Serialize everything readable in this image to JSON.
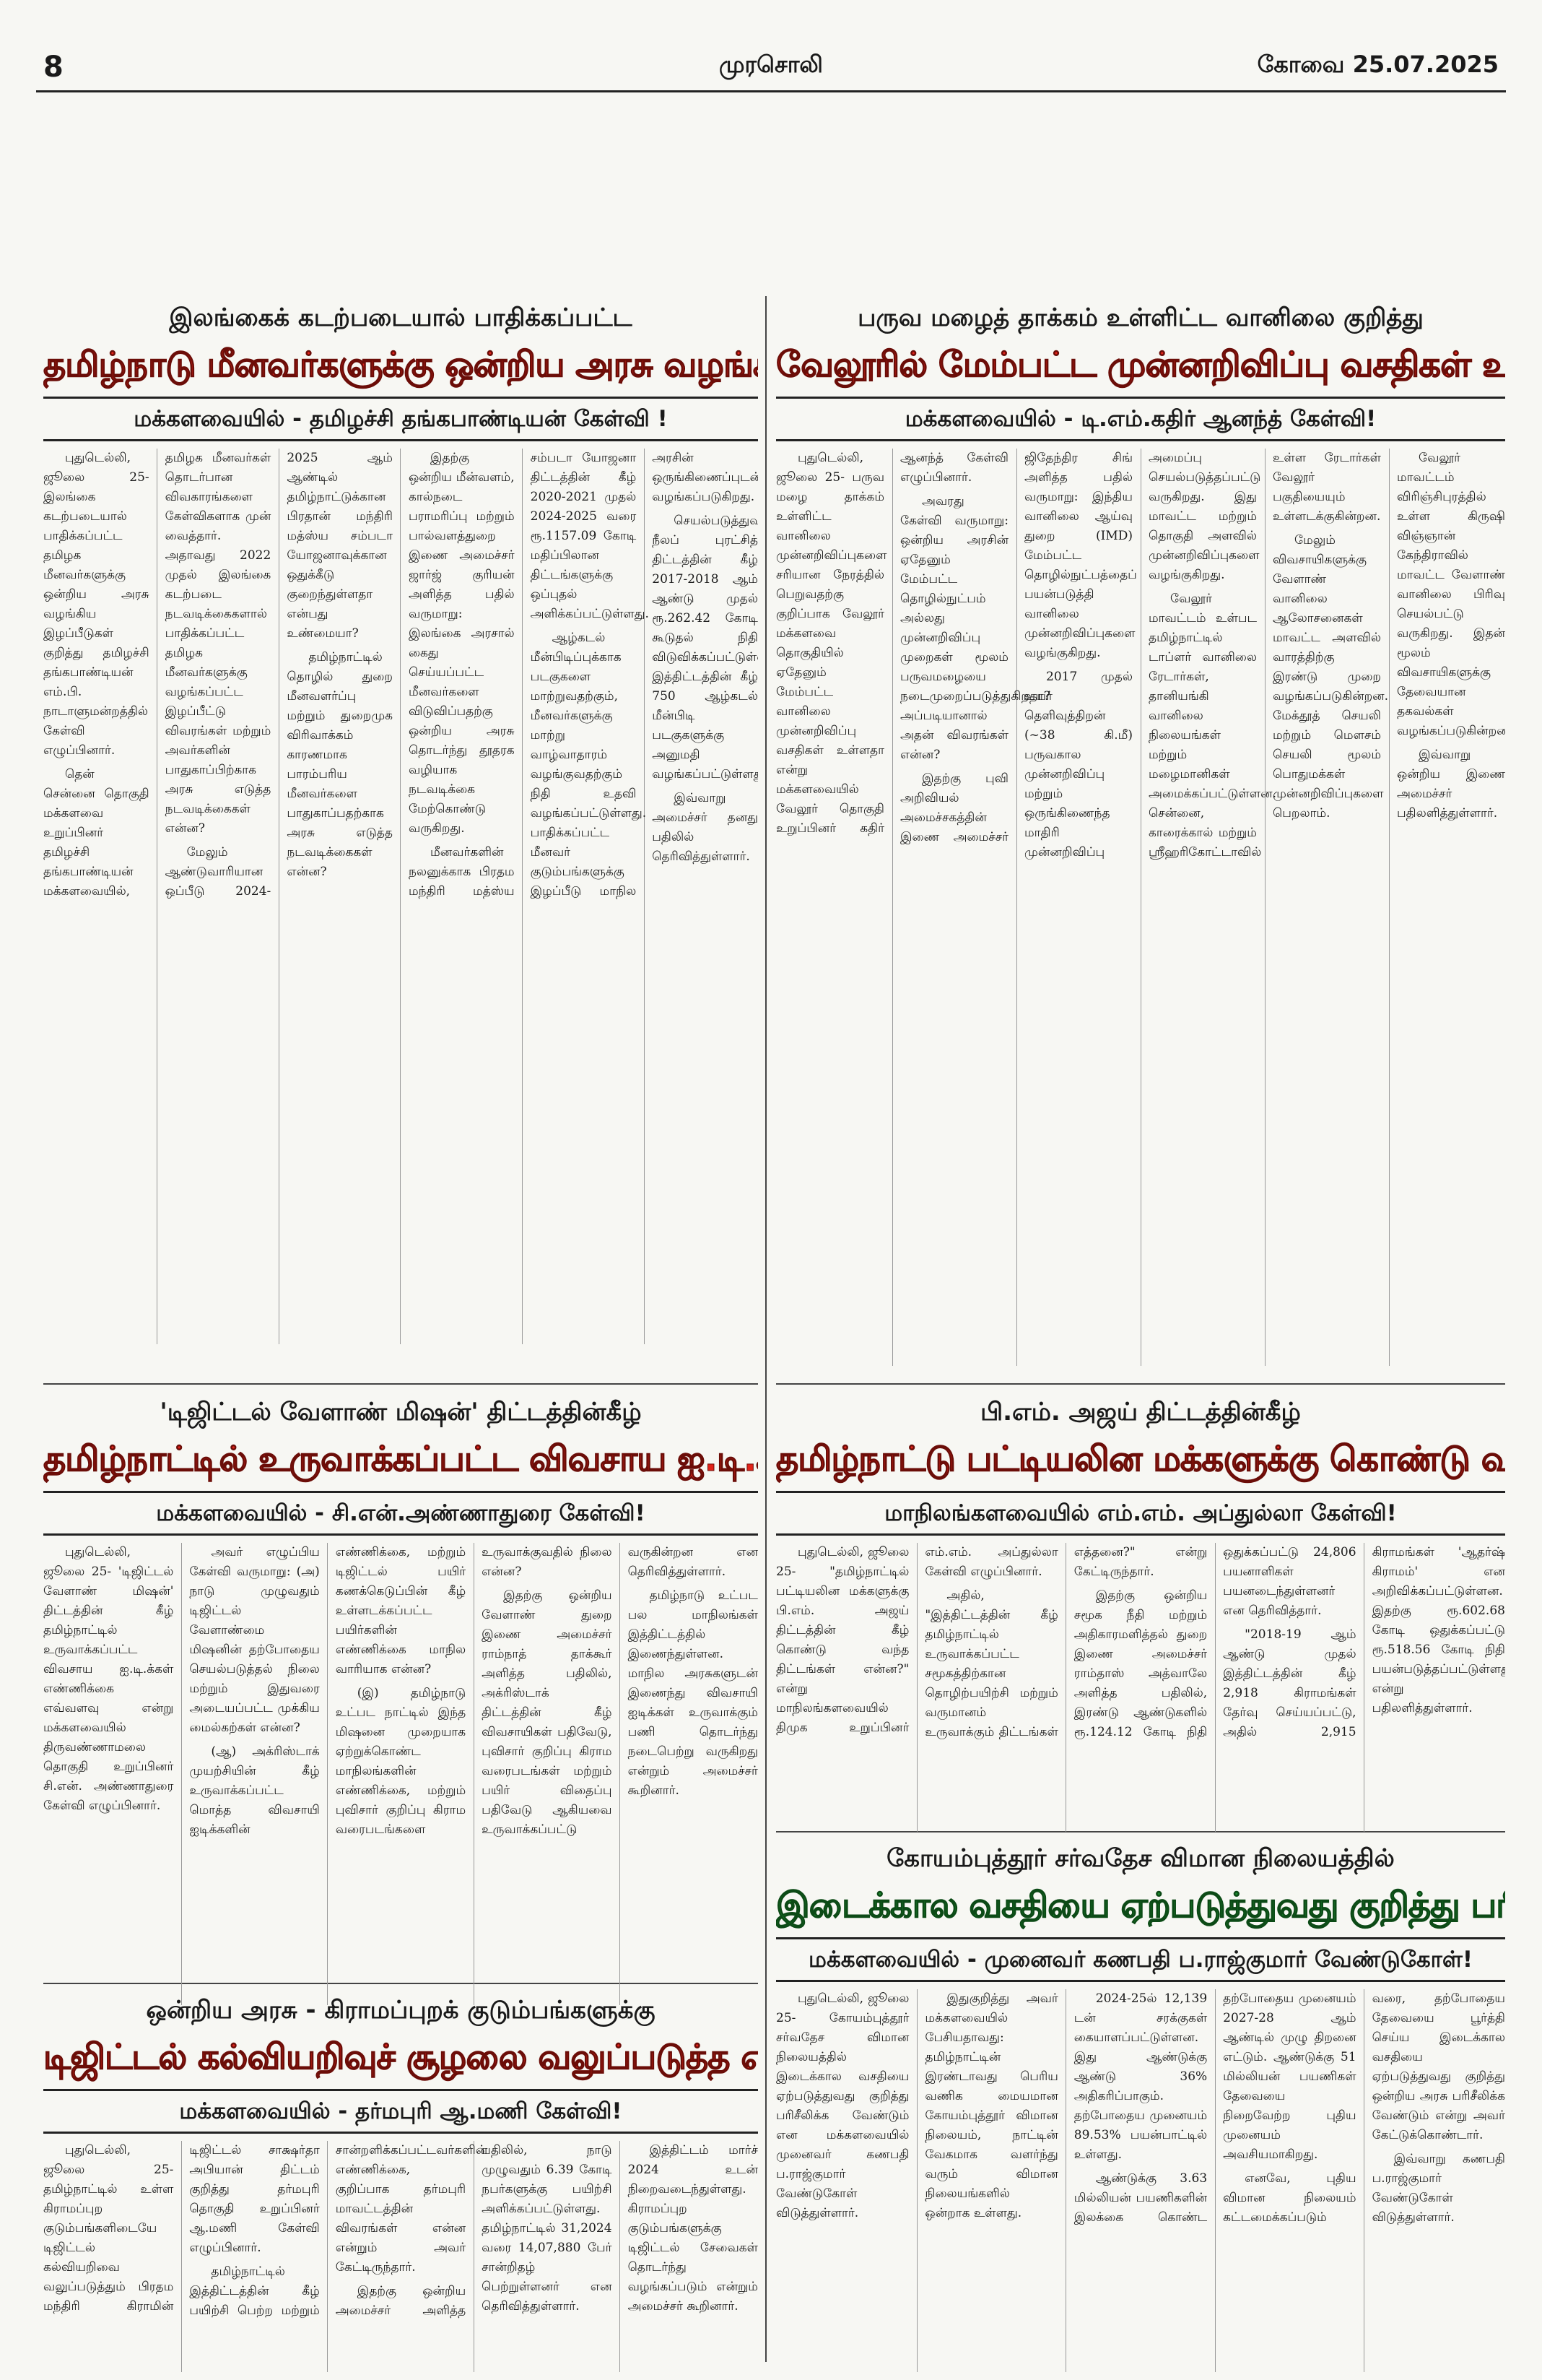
{
  "header": {
    "page": "8",
    "paper": "முரசொலி",
    "edition_date": "கோவை 25.07.2025"
  },
  "articles": [
    {
      "kicker": "இலங்கைக் கடற்படையால் பாதிக்கப்பட்ட",
      "headline": "தமிழ்நாடு மீனவர்களுக்கு ஒன்றிய அரசு வழங்கிய இழப்பீடுகள் என்ன?",
      "byline": "மக்களவையில் - தமிழச்சி தங்கபாண்டியன் கேள்வி !",
      "paragraphs": [
        "புதுடெல்லி, ஜூலை 25- இலங்கை கடற்படையால் பாதிக்கப்பட்ட தமிழக மீனவர்களுக்கு ஒன்றிய அரசு வழங்கிய இழப்பீடுகள் குறித்து தமிழச்சி தங்கபாண்டியன் எம்.பி. நாடாளுமன்றத்தில் கேள்வி எழுப்பினார்.",
        "தென் சென்னை தொகுதி மக்களவை உறுப்பினர் தமிழச்சி தங்கபாண்டியன் மக்களவையில், தமிழக மீனவர்கள் தொடர்பான விவகாரங்களை கேள்விகளாக முன் வைத்தார். அதாவது 2022 முதல் இலங்கை கடற்படை நடவடிக்கைகளால் பாதிக்கப்பட்ட தமிழக மீனவர்களுக்கு வழங்கப்பட்ட இழப்பீட்டு விவரங்கள் மற்றும் அவர்களின் பாதுகாப்பிற்காக அரசு எடுத்த நடவடிக்கைகள் என்ன?",
        "மேலும் ஆண்டுவாரியான ஒப்பீடு 2024-2025 ஆம் ஆண்டில் தமிழ்நாட்டுக்கான பிரதான் மந்திரி மத்ஸ்ய சம்படா யோஜனாவுக்கான ஒதுக்கீடு குறைந்துள்ளதா என்பது உண்மையா?",
        "தமிழ்நாட்டில் தொழில் துறை மீனவளர்ப்பு மற்றும் துறைமுக விரிவாக்கம் காரணமாக பாரம்பரிய மீனவர்களை பாதுகாப்பதற்காக அரசு எடுத்த நடவடிக்கைகள் என்ன?",
        "இதற்கு ஒன்றிய மீன்வளம், கால்நடை பராமரிப்பு மற்றும் பால்வளத்துறை இணை அமைச்சர் ஜார்ஜ் குரியன் அளித்த பதில் வருமாறு: இலங்கை அரசால் கைது செய்யப்பட்ட மீனவர்களை விடுவிப்பதற்கு ஒன்றிய அரசு தொடர்ந்து தூதரக வழியாக நடவடிக்கை மேற்கொண்டு வருகிறது.",
        "மீனவர்களின் நலனுக்காக பிரதம மந்திரி மத்ஸ்ய சம்படா யோஜனா திட்டத்தின் கீழ் 2020-2021 முதல் 2024-2025 வரை ரூ.1157.09 கோடி மதிப்பிலான திட்டங்களுக்கு ஒப்புதல் அளிக்கப்பட்டுள்ளது.",
        "ஆழ்கடல் மீன்பிடிப்புக்காக படகுகளை மாற்றுவதற்கும், மீனவர்களுக்கு மாற்று வாழ்வாதாரம் வழங்குவதற்கும் நிதி உதவி வழங்கப்பட்டுள்ளது. பாதிக்கப்பட்ட மீனவர் குடும்பங்களுக்கு இழப்பீடு மாநில அரசின் ஒருங்கிணைப்புடன் வழங்கப்படுகிறது.",
        "செயல்படுத்துவதற்காக நீலப் புரட்சித் திட்டத்தின் கீழ் 2017-2018 ஆம் ஆண்டு முதல் ரூ.262.42 கோடி கூடுதல் நிதி விடுவிக்கப்பட்டுள்ளது. இத்திட்டத்தின் கீழ் 750 ஆழ்கடல் மீன்பிடி படகுகளுக்கு அனுமதி வழங்கப்பட்டுள்ளது.",
        "இவ்வாறு அமைச்சர் தனது பதிலில் தெரிவித்துள்ளார்."
      ]
    },
    {
      "kicker": "பருவ மழைத் தாக்கம் உள்ளிட்ட வானிலை குறித்து",
      "headline": "வேலூரில் மேம்பட்ட முன்னறிவிப்பு வசதிகள் உள்ளதா?",
      "byline": "மக்களவையில் - டி.எம்.கதிர் ஆனந்த் கேள்வி!",
      "paragraphs": [
        "புதுடெல்லி, ஜூலை 25- பருவ மழை தாக்கம் உள்ளிட்ட வானிலை முன்னறிவிப்புகளை சரியான நேரத்தில் பெறுவதற்கு குறிப்பாக வேலூர் மக்களவை தொகுதியில் ஏதேனும் மேம்பட்ட வானிலை முன்னறிவிப்பு வசதிகள் உள்ளதா என்று மக்களவையில் வேலூர் தொகுதி உறுப்பினர் கதிர் ஆனந்த் கேள்வி எழுப்பினார்.",
        "அவரது கேள்வி வருமாறு: ஒன்றிய அரசின் ஏதேனும் மேம்பட்ட தொழில்நுட்பம் அல்லது முன்னறிவிப்பு முறைகள் மூலம் பருவமழையை நடைமுறைப்படுத்துகிறதா? அப்படியானால் அதன் விவரங்கள் என்ன?",
        "இதற்கு புவி அறிவியல் அமைச்சகத்தின் இணை அமைச்சர் ஜிதேந்திர சிங் அளித்த பதில் வருமாறு: இந்திய வானிலை ஆய்வு துறை (IMD) மேம்பட்ட தொழில்நுட்பத்தைப் பயன்படுத்தி வானிலை முன்னறிவிப்புகளை வழங்குகிறது.",
        "2017 முதல் உயர் தெளிவுத்திறன் (~38 கி.மீ) பருவகால முன்னறிவிப்பு மற்றும் ஒருங்கிணைந்த மாதிரி முன்னறிவிப்பு அமைப்பு செயல்படுத்தப்பட்டு வருகிறது. இது மாவட்ட மற்றும் தொகுதி அளவில் முன்னறிவிப்புகளை வழங்குகிறது.",
        "வேலூர் மாவட்டம் உள்பட தமிழ்நாட்டில் டாப்ளர் வானிலை ரேடார்கள், தானியங்கி வானிலை நிலையங்கள் மற்றும் மழைமானிகள் அமைக்கப்பட்டுள்ளன. சென்னை, காரைக்கால் மற்றும் ஸ்ரீஹரிகோட்டாவில் உள்ள ரேடார்கள் வேலூர் பகுதியையும் உள்ளடக்குகின்றன.",
        "மேலும் விவசாயிகளுக்கு வேளாண் வானிலை ஆலோசனைகள் மாவட்ட அளவில் வாரத்திற்கு இரண்டு முறை வழங்கப்படுகின்றன. மேக்தூத் செயலி மற்றும் மௌசம் செயலி மூலம் பொதுமக்கள் முன்னறிவிப்புகளை பெறலாம்.",
        "வேலூர் மாவட்டம் விரிஞ்சிபுரத்தில் உள்ள கிருஷி விஞ்ஞான் கேந்திராவில் மாவட்ட வேளாண் வானிலை பிரிவு செயல்பட்டு வருகிறது. இதன் மூலம் விவசாயிகளுக்கு தேவையான தகவல்கள் வழங்கப்படுகின்றன.",
        "இவ்வாறு ஒன்றிய இணை அமைச்சர் பதிலளித்துள்ளார்."
      ]
    },
    {
      "kicker": "'டிஜிட்டல் வேளாண் மிஷன்' திட்டத்தின்கீழ்",
      "headline": "தமிழ்நாட்டில் உருவாக்கப்பட்ட விவசாய ஐ.டி.க்கள் எவ்வளவு?",
      "byline": "மக்களவையில் - சி.என்.அண்ணாதுரை கேள்வி!",
      "paragraphs": [
        "புதுடெல்லி, ஜூலை 25- 'டிஜிட்டல் வேளாண் மிஷன்' திட்டத்தின் கீழ் தமிழ்நாட்டில் உருவாக்கப்பட்ட விவசாய ஐ.டி.க்கள் எண்ணிக்கை எவ்வளவு என்று மக்களவையில் திருவண்ணாமலை தொகுதி உறுப்பினர் சி.என். அண்ணாதுரை கேள்வி எழுப்பினார்.",
        "அவர் எழுப்பிய கேள்வி வருமாறு: (அ) நாடு முழுவதும் டிஜிட்டல் வேளாண்மை மிஷனின் தற்போதைய செயல்படுத்தல் நிலை மற்றும் இதுவரை அடையப்பட்ட முக்கிய மைல்கற்கள் என்ன?",
        "(ஆ) அக்ரிஸ்டாக் முயற்சியின் கீழ் உருவாக்கப்பட்ட மொத்த விவசாயி ஐடிக்களின் எண்ணிக்கை, மற்றும் டிஜிட்டல் பயிர் கணக்கெடுப்பின் கீழ் உள்ளடக்கப்பட்ட பயிர்களின் எண்ணிக்கை மாநில வாரியாக என்ன?",
        "(இ) தமிழ்நாடு உட்பட நாட்டில் இந்த மிஷனை முறையாக ஏற்றுக்கொண்ட மாநிலங்களின் எண்ணிக்கை, மற்றும் புவிசார் குறிப்பு கிராம வரைபடங்களை உருவாக்குவதில் நிலை என்ன?",
        "இதற்கு ஒன்றிய வேளாண் துறை இணை அமைச்சர் ராம்நாத் தாக்கூர் அளித்த பதிலில், அக்ரிஸ்டாக் திட்டத்தின் கீழ் விவசாயிகள் பதிவேடு, புவிசார் குறிப்பு கிராம வரைபடங்கள் மற்றும் பயிர் விதைப்பு பதிவேடு ஆகியவை உருவாக்கப்பட்டு வருகின்றன என தெரிவித்துள்ளார்.",
        "தமிழ்நாடு உட்பட பல மாநிலங்கள் இத்திட்டத்தில் இணைந்துள்ளன. மாநில அரசுகளுடன் இணைந்து விவசாயி ஐடிக்கள் உருவாக்கும் பணி தொடர்ந்து நடைபெற்று வருகிறது என்றும் அமைச்சர் கூறினார்."
      ]
    },
    {
      "kicker": "பி.எம். அஜய் திட்டத்தின்கீழ்",
      "headline": "தமிழ்நாட்டு பட்டியலின மக்களுக்கு கொண்டு வந்த திட்டங்கள் என்ன?",
      "byline": "மாநிலங்களவையில் எம்.எம். அப்துல்லா கேள்வி!",
      "paragraphs": [
        "புதுடெல்லி, ஜூலை 25- \"தமிழ்நாட்டில் பட்டியலின மக்களுக்கு பி.எம். அஜய் திட்டத்தின் கீழ் கொண்டு வந்த திட்டங்கள் என்ன?\" என்று மாநிலங்களவையில் திமுக உறுப்பினர் எம்.எம். அப்துல்லா கேள்வி எழுப்பினார்.",
        "அதில், \"இத்திட்டத்தின் கீழ் தமிழ்நாட்டில் உருவாக்கப்பட்ட சமூகத்திற்கான தொழிற்பயிற்சி மற்றும் வருமானம் உருவாக்கும் திட்டங்கள் எத்தனை?\" என்று கேட்டிருந்தார்.",
        "இதற்கு ஒன்றிய சமூக நீதி மற்றும் அதிகாரமளித்தல் துறை இணை அமைச்சர் ராம்தாஸ் அத்வாலே அளித்த பதிலில், இரண்டு ஆண்டுகளில் ரூ.124.12 கோடி நிதி ஒதுக்கப்பட்டு 24,806 பயனாளிகள் பயனடைந்துள்ளனர் என தெரிவித்தார்.",
        "\"2018-19 ஆம் ஆண்டு முதல் இத்திட்டத்தின் கீழ் 2,918 கிராமங்கள் தேர்வு செய்யப்பட்டு, அதில் 2,915 கிராமங்கள் 'ஆதர்ஷ் கிராமம்' என அறிவிக்கப்பட்டுள்ளன. இதற்கு ரூ.602.68 கோடி ஒதுக்கப்பட்டு ரூ.518.56 கோடி நிதி பயன்படுத்தப்பட்டுள்ளது\" என்று பதிலளித்துள்ளார்."
      ]
    },
    {
      "kicker": "கோயம்புத்தூர் சர்வதேச விமான நிலையத்தில்",
      "headline": "இடைக்கால வசதியை ஏற்படுத்துவது குறித்து பரிசீலிக்க வேண்டும்!",
      "byline": "மக்களவையில் - முனைவர் கணபதி ப.ராஜ்குமார் வேண்டுகோள்!",
      "paragraphs": [
        "புதுடெல்லி, ஜூலை 25- கோயம்புத்தூர் சர்வதேச விமான நிலையத்தில் இடைக்கால வசதியை ஏற்படுத்துவது குறித்து பரிசீலிக்க வேண்டும் என மக்களவையில் முனைவர் கணபதி ப.ராஜ்குமார் வேண்டுகோள் விடுத்துள்ளார்.",
        "இதுகுறித்து அவர் மக்களவையில் பேசியதாவது: தமிழ்நாட்டின் இரண்டாவது பெரிய வணிக மையமான கோயம்புத்தூர் விமான நிலையம், நாட்டின் வேகமாக வளர்ந்து வரும் விமான நிலையங்களில் ஒன்றாக உள்ளது.",
        "2024-25ல் 12,139 டன் சரக்குகள் கையாளப்பட்டுள்ளன. இது ஆண்டுக்கு ஆண்டு 36% அதிகரிப்பாகும். தற்போதைய முனையம் 89.53% பயன்பாட்டில் உள்ளது.",
        "ஆண்டுக்கு 3.63 மில்லியன் பயணிகளின் இலக்கை கொண்ட தற்போதைய முனையம் 2027-28 ஆம் ஆண்டில் முழு திறனை எட்டும். ஆண்டுக்கு 51 மில்லியன் பயணிகள் தேவையை நிறைவேற்ற புதிய முனையம் அவசியமாகிறது.",
        "எனவே, புதிய விமான நிலையம் கட்டமைக்கப்படும் வரை, தற்போதைய தேவையை பூர்த்தி செய்ய இடைக்கால வசதியை ஏற்படுத்துவது குறித்து ஒன்றிய அரசு பரிசீலிக்க வேண்டும் என்று அவர் கேட்டுக்கொண்டார்.",
        "இவ்வாறு கணபதி ப.ராஜ்குமார் வேண்டுகோள் விடுத்துள்ளார்."
      ]
    },
    {
      "kicker": "ஒன்றிய அரசு - கிராமப்புறக் குடும்பங்களுக்கு",
      "headline": "டிஜிட்டல் கல்வியறிவுச் சூழலை வலுப்படுத்த எடுத்துள்ள நடவடிக்கைகள் என்ன?",
      "byline": "மக்களவையில் - தர்மபுரி ஆ.மணி கேள்வி!",
      "paragraphs": [
        "புதுடெல்லி, ஜூலை 25- தமிழ்நாட்டில் உள்ள கிராமப்புற குடும்பங்களிடையே டிஜிட்டல் கல்வியறிவை வலுப்படுத்தும் பிரதம மந்திரி கிராமின் டிஜிட்டல் சாக்ஷர்தா அபியான் திட்டம் குறித்து தர்மபுரி தொகுதி உறுப்பினர் ஆ.மணி கேள்வி எழுப்பினார்.",
        "தமிழ்நாட்டில் இத்திட்டத்தின் கீழ் பயிற்சி பெற்ற மற்றும் சான்றளிக்கப்பட்டவர்களின் எண்ணிக்கை, குறிப்பாக தர்மபுரி மாவட்டத்தின் விவரங்கள் என்ன என்றும் அவர் கேட்டிருந்தார்.",
        "இதற்கு ஒன்றிய அமைச்சர் அளித்த பதிலில், நாடு முழுவதும் 6.39 கோடி நபர்களுக்கு பயிற்சி அளிக்கப்பட்டுள்ளது. தமிழ்நாட்டில் 31,2024 வரை 14,07,880 பேர் சான்றிதழ் பெற்றுள்ளனர் என தெரிவித்துள்ளார்.",
        "இத்திட்டம் மார்ச் 2024 உடன் நிறைவடைந்துள்ளது. கிராமப்புற குடும்பங்களுக்கு டிஜிட்டல் சேவைகள் தொடர்ந்து வழங்கப்படும் என்றும் அமைச்சர் கூறினார்."
      ]
    }
  ]
}
